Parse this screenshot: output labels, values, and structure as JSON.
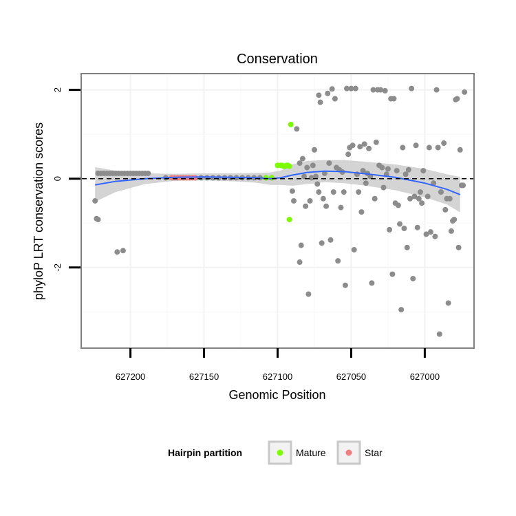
{
  "chart_data": {
    "type": "scatter",
    "title": "Conservation",
    "xlabel": "Genomic Position",
    "ylabel": "phyloP LRT conservation scores",
    "x_reversed": true,
    "xlim": [
      627233,
      626967
    ],
    "ylim": [
      -3.8,
      2.35
    ],
    "x_ticks": [
      627200,
      627150,
      627100,
      627050,
      627000
    ],
    "x_tick_labels": [
      "627200",
      "627150",
      "627100",
      "627050",
      "627000"
    ],
    "y_ticks": [
      2,
      0,
      -2
    ],
    "y_tick_labels": [
      "2",
      "0",
      "-2"
    ],
    "reference_line_y": 0,
    "grid": true,
    "legend": {
      "title": "Hairpin partition",
      "placement": "bottom",
      "entries": [
        {
          "label": "Mature",
          "color": "#7CFC00"
        },
        {
          "label": "Star",
          "color": "#F08080"
        }
      ]
    },
    "colors": {
      "other": "#8c8c8c",
      "mature": "#7CFC00",
      "star": "#F08080",
      "smooth": "#3366FF",
      "band": "#cccccc"
    },
    "series": [
      {
        "group": "other",
        "points": [
          [
            627224,
            -0.5
          ],
          [
            627223,
            -0.9
          ],
          [
            627222,
            -0.92
          ],
          [
            627222,
            0.12
          ],
          [
            627220,
            0.12
          ],
          [
            627218,
            0.12
          ],
          [
            627216,
            0.12
          ],
          [
            627214,
            0.12
          ],
          [
            627212,
            0.12
          ],
          [
            627210,
            0.12
          ],
          [
            627208,
            0.12
          ],
          [
            627206,
            0.12
          ],
          [
            627204,
            0.12
          ],
          [
            627202,
            0.12
          ],
          [
            627200,
            0.12
          ],
          [
            627198,
            0.12
          ],
          [
            627196,
            0.12
          ],
          [
            627194,
            0.12
          ],
          [
            627192,
            0.12
          ],
          [
            627190,
            0.12
          ],
          [
            627188,
            0.12
          ],
          [
            627209,
            -1.65
          ],
          [
            627205,
            -1.62
          ],
          [
            627176,
            0.02
          ],
          [
            627172,
            0.02
          ],
          [
            627168,
            0.02
          ],
          [
            627164,
            0.02
          ],
          [
            627160,
            0.02
          ],
          [
            627156,
            0.02
          ],
          [
            627152,
            0.02
          ],
          [
            627148,
            0.02
          ],
          [
            627144,
            0.02
          ],
          [
            627140,
            0.02
          ],
          [
            627136,
            0.02
          ],
          [
            627132,
            0.02
          ],
          [
            627128,
            0.02
          ],
          [
            627124,
            0.02
          ],
          [
            627120,
            0.02
          ],
          [
            627116,
            0.02
          ],
          [
            627112,
            0.02
          ],
          [
            627108,
            0.02
          ],
          [
            627104,
            0.02
          ],
          [
            627090,
            -0.28
          ],
          [
            627089,
            -0.5
          ],
          [
            627087,
            1.12
          ],
          [
            627085,
            0.35
          ],
          [
            627085,
            -1.88
          ],
          [
            627084,
            -1.5
          ],
          [
            627083,
            0.45
          ],
          [
            627082,
            0.05
          ],
          [
            627081,
            -0.62
          ],
          [
            627080,
            0.25
          ],
          [
            627079,
            -2.6
          ],
          [
            627078,
            -0.5
          ],
          [
            627077,
            0.02
          ],
          [
            627076,
            0.3
          ],
          [
            627075,
            0.65
          ],
          [
            627074,
            0.05
          ],
          [
            627073,
            -0.12
          ],
          [
            627072,
            -0.3
          ],
          [
            627072,
            1.88
          ],
          [
            627071,
            1.72
          ],
          [
            627070,
            -1.45
          ],
          [
            627069,
            -0.45
          ],
          [
            627068,
            0.12
          ],
          [
            627067,
            -0.62
          ],
          [
            627066,
            1.92
          ],
          [
            627065,
            0.35
          ],
          [
            627064,
            -1.38
          ],
          [
            627063,
            2.02
          ],
          [
            627062,
            -0.3
          ],
          [
            627061,
            1.8
          ],
          [
            627060,
            0.25
          ],
          [
            627059,
            -1.85
          ],
          [
            627058,
            0.2
          ],
          [
            627057,
            -0.65
          ],
          [
            627056,
            0.15
          ],
          [
            627055,
            -0.3
          ],
          [
            627054,
            -2.4
          ],
          [
            627053,
            2.03
          ],
          [
            627052,
            0.55
          ],
          [
            627051,
            0.7
          ],
          [
            627050,
            2.03
          ],
          [
            627049,
            0.75
          ],
          [
            627048,
            -1.6
          ],
          [
            627047,
            2.03
          ],
          [
            627046,
            0.1
          ],
          [
            627045,
            -0.3
          ],
          [
            627044,
            0.72
          ],
          [
            627043,
            -0.75
          ],
          [
            627042,
            0.18
          ],
          [
            627041,
            0.78
          ],
          [
            627040,
            -0.1
          ],
          [
            627039,
            0.12
          ],
          [
            627038,
            0.68
          ],
          [
            627037,
            0.05
          ],
          [
            627036,
            -2.35
          ],
          [
            627035,
            2.0
          ],
          [
            627034,
            -0.45
          ],
          [
            627033,
            0.82
          ],
          [
            627032,
            2.0
          ],
          [
            627031,
            0.3
          ],
          [
            627030,
            2.0
          ],
          [
            627029,
            0.25
          ],
          [
            627028,
            -0.2
          ],
          [
            627027,
            1.98
          ],
          [
            627026,
            0.1
          ],
          [
            627025,
            0.22
          ],
          [
            627024,
            -1.15
          ],
          [
            627023,
            1.8
          ],
          [
            627022,
            -2.15
          ],
          [
            627021,
            1.8
          ],
          [
            627020,
            -0.55
          ],
          [
            627019,
            0.18
          ],
          [
            627018,
            -0.6
          ],
          [
            627017,
            -1.02
          ],
          [
            627016,
            -2.95
          ],
          [
            627015,
            0.7
          ],
          [
            627014,
            -1.12
          ],
          [
            627013,
            0.1
          ],
          [
            627012,
            -1.55
          ],
          [
            627011,
            0.2
          ],
          [
            627010,
            -0.45
          ],
          [
            627009,
            2.03
          ],
          [
            627008,
            -2.25
          ],
          [
            627007,
            -0.4
          ],
          [
            627006,
            0.75
          ],
          [
            627005,
            -1.1
          ],
          [
            627004,
            -0.45
          ],
          [
            627003,
            -0.3
          ],
          [
            627002,
            -0.55
          ],
          [
            627001,
            0.18
          ],
          [
            626999,
            -1.25
          ],
          [
            626998,
            -0.4
          ],
          [
            626997,
            0.7
          ],
          [
            626996,
            -1.2
          ],
          [
            626994,
            -0.1
          ],
          [
            626993,
            -1.3
          ],
          [
            626992,
            2.0
          ],
          [
            626991,
            0.7
          ],
          [
            626990,
            -3.5
          ],
          [
            626989,
            -0.3
          ],
          [
            626987,
            0.8
          ],
          [
            626986,
            -0.7
          ],
          [
            626985,
            -0.45
          ],
          [
            626984,
            -2.8
          ],
          [
            626983,
            -0.45
          ],
          [
            626982,
            -1.18
          ],
          [
            626981,
            -0.95
          ],
          [
            626980,
            -0.92
          ],
          [
            626979,
            1.78
          ],
          [
            626978,
            1.8
          ],
          [
            626977,
            -1.55
          ],
          [
            626976,
            0.65
          ],
          [
            626975,
            -0.15
          ],
          [
            626974,
            -0.15
          ],
          [
            626973,
            1.95
          ]
        ]
      },
      {
        "group": "mature",
        "name": "Mature",
        "points": [
          [
            627100,
            0.3
          ],
          [
            627098,
            0.3
          ],
          [
            627097,
            0.3
          ],
          [
            627096,
            0.28
          ],
          [
            627095,
            0.28
          ],
          [
            627094,
            0.3
          ],
          [
            627093,
            0.3
          ],
          [
            627092,
            0.28
          ],
          [
            627091,
            1.22
          ],
          [
            627092,
            -0.92
          ],
          [
            627108,
            0.02
          ],
          [
            627104,
            0.02
          ]
        ]
      },
      {
        "group": "star",
        "name": "Star",
        "points": [
          [
            627172,
            0.02
          ],
          [
            627170,
            0.02
          ],
          [
            627168,
            0.02
          ],
          [
            627166,
            0.02
          ],
          [
            627164,
            0.02
          ],
          [
            627162,
            0.02
          ],
          [
            627160,
            0.02
          ],
          [
            627158,
            0.02
          ],
          [
            627156,
            0.02
          ]
        ]
      }
    ],
    "smooth": {
      "points": [
        [
          627224,
          -0.14
        ],
        [
          627210,
          -0.06
        ],
        [
          627190,
          0.0
        ],
        [
          627170,
          0.03
        ],
        [
          627150,
          0.04
        ],
        [
          627130,
          0.03
        ],
        [
          627115,
          0.02
        ],
        [
          627105,
          0.0
        ],
        [
          627098,
          0.02
        ],
        [
          627090,
          0.08
        ],
        [
          627080,
          0.14
        ],
        [
          627068,
          0.17
        ],
        [
          627055,
          0.16
        ],
        [
          627040,
          0.11
        ],
        [
          627020,
          0.03
        ],
        [
          627000,
          -0.1
        ],
        [
          626985,
          -0.24
        ],
        [
          626976,
          -0.36
        ]
      ],
      "band_upper": [
        [
          627224,
          0.26
        ],
        [
          627210,
          0.18
        ],
        [
          627190,
          0.12
        ],
        [
          627170,
          0.11
        ],
        [
          627150,
          0.12
        ],
        [
          627130,
          0.12
        ],
        [
          627115,
          0.13
        ],
        [
          627105,
          0.14
        ],
        [
          627098,
          0.18
        ],
        [
          627090,
          0.32
        ],
        [
          627080,
          0.4
        ],
        [
          627068,
          0.42
        ],
        [
          627055,
          0.42
        ],
        [
          627040,
          0.38
        ],
        [
          627020,
          0.32
        ],
        [
          627000,
          0.22
        ],
        [
          626985,
          0.1
        ],
        [
          626976,
          0.04
        ]
      ],
      "band_lower": [
        [
          627224,
          -0.52
        ],
        [
          627210,
          -0.3
        ],
        [
          627190,
          -0.12
        ],
        [
          627170,
          -0.05
        ],
        [
          627150,
          -0.04
        ],
        [
          627130,
          -0.06
        ],
        [
          627115,
          -0.09
        ],
        [
          627105,
          -0.14
        ],
        [
          627098,
          -0.14
        ],
        [
          627090,
          -0.16
        ],
        [
          627080,
          -0.12
        ],
        [
          627068,
          -0.08
        ],
        [
          627055,
          -0.1
        ],
        [
          627040,
          -0.16
        ],
        [
          627020,
          -0.26
        ],
        [
          627000,
          -0.42
        ],
        [
          626985,
          -0.58
        ],
        [
          626976,
          -0.76
        ]
      ]
    }
  }
}
